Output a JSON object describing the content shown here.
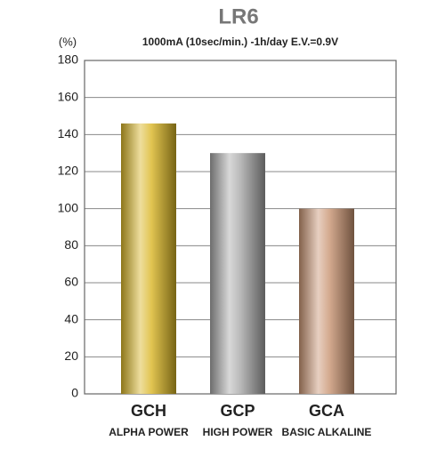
{
  "chart_data": {
    "type": "bar",
    "title": "LR6",
    "subtitle": "1000mA (10sec/min.) -1h/day  E.V.=0.9V",
    "y_label": "(%)",
    "categories": [
      "GCH",
      "GCP",
      "GCA"
    ],
    "category_descriptions": [
      "ALPHA POWER",
      "HIGH POWER",
      "BASIC ALKALINE"
    ],
    "values": [
      146,
      130,
      100
    ],
    "colors": [
      "#d9b526",
      "#a8a8a8",
      "#c99573"
    ],
    "ylim": [
      0,
      180
    ],
    "yticks": [
      0,
      20,
      40,
      60,
      80,
      100,
      120,
      140,
      160,
      180
    ],
    "grid": true
  }
}
